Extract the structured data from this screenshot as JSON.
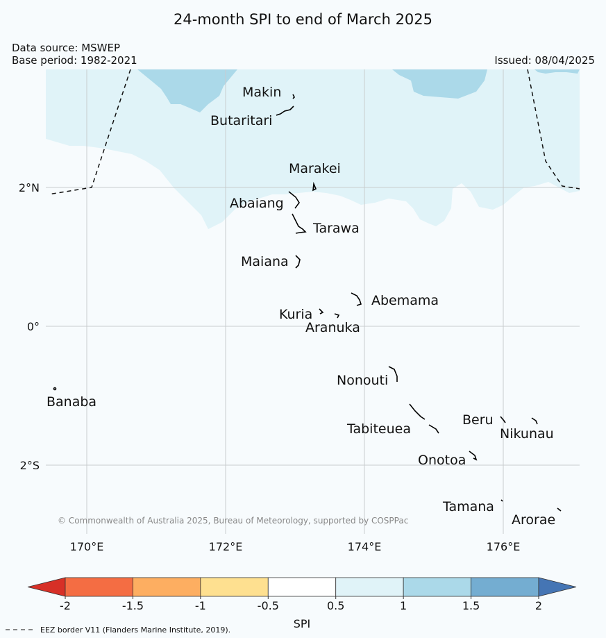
{
  "title": "24-month SPI to end of March 2025",
  "data_source": "Data source: MSWEP",
  "base_period": "Base period: 1982-2021",
  "issued": "Issued: 08/04/2025",
  "copyright": "© Commonwealth of Australia 2025, Bureau of Meteorology, supported by COSPPac",
  "eez_note": "EEZ border V11 (Flanders Marine Institute, 2019).",
  "latitude_labels": [
    "2°N",
    "0°",
    "2°S"
  ],
  "longitude_labels": [
    "170°E",
    "172°E",
    "174°E",
    "176°E"
  ],
  "places": {
    "makin": "Makin",
    "butaritari": "Butaritari",
    "marakei": "Marakei",
    "abaiang": "Abaiang",
    "tarawa": "Tarawa",
    "maiana": "Maiana",
    "abemama": "Abemama",
    "kuria": "Kuria",
    "aranuka": "Aranuka",
    "nonouti": "Nonouti",
    "banaba": "Banaba",
    "beru": "Beru",
    "nikunau": "Nikunau",
    "tabiteuea": "Tabiteuea",
    "onotoa": "Onotoa",
    "tamana": "Tamana",
    "arorae": "Arorae"
  },
  "colorbar": {
    "label": "SPI",
    "ticks": [
      "-2",
      "-1.5",
      "-1",
      "-0.5",
      "0.5",
      "1",
      "1.5",
      "2"
    ],
    "bins": [
      {
        "range": "< -2",
        "color": "#d73027"
      },
      {
        "range": "-2 to -1.5",
        "color": "#f46d43"
      },
      {
        "range": "-1.5 to -1",
        "color": "#fdae61"
      },
      {
        "range": "-1 to -0.5",
        "color": "#fee090"
      },
      {
        "range": "-0.5 to 0.5",
        "color": "#ffffff"
      },
      {
        "range": "0.5 to 1",
        "color": "#e0f3f8"
      },
      {
        "range": "1 to 1.5",
        "color": "#abd9e9"
      },
      {
        "range": "1.5 to 2",
        "color": "#74add1"
      },
      {
        "range": "> 2",
        "color": "#4575b4"
      }
    ]
  }
}
